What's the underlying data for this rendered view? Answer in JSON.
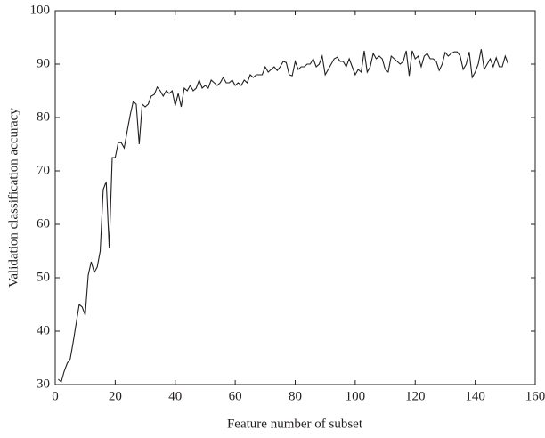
{
  "chart_data": {
    "type": "line",
    "xlabel": "Feature number of subset",
    "ylabel": "Validation classification accuracy",
    "xlim": [
      0,
      160
    ],
    "ylim": [
      30,
      100
    ],
    "xticks": [
      0,
      20,
      40,
      60,
      80,
      100,
      120,
      140,
      160
    ],
    "yticks": [
      30,
      40,
      50,
      60,
      70,
      80,
      90,
      100
    ],
    "color": "#231f20",
    "x": [
      1,
      2,
      3,
      4,
      5,
      6,
      7,
      8,
      9,
      10,
      11,
      12,
      13,
      14,
      15,
      16,
      17,
      18,
      19,
      20,
      21,
      22,
      23,
      24,
      25,
      26,
      27,
      28,
      29,
      30,
      31,
      32,
      33,
      34,
      35,
      36,
      37,
      38,
      39,
      40,
      41,
      42,
      43,
      44,
      45,
      46,
      47,
      48,
      49,
      50,
      51,
      52,
      53,
      54,
      55,
      56,
      57,
      58,
      59,
      60,
      61,
      62,
      63,
      64,
      65,
      66,
      67,
      68,
      69,
      70,
      71,
      72,
      73,
      74,
      75,
      76,
      77,
      78,
      79,
      80,
      81,
      82,
      83,
      84,
      85,
      86,
      87,
      88,
      89,
      90,
      91,
      92,
      93,
      94,
      95,
      96,
      97,
      98,
      99,
      100,
      101,
      102,
      103,
      104,
      105,
      106,
      107,
      108,
      109,
      110,
      111,
      112,
      113,
      114,
      115,
      116,
      117,
      118,
      119,
      120,
      121,
      122,
      123,
      124,
      125,
      126,
      127,
      128,
      129,
      130,
      131,
      132,
      133,
      134,
      135,
      136,
      137,
      138,
      139,
      140,
      141,
      142,
      143,
      144,
      145,
      146,
      147,
      148,
      149,
      150,
      151
    ],
    "values": [
      31,
      30.5,
      32.5,
      34,
      34.8,
      38,
      41.5,
      45,
      44.5,
      43,
      50.5,
      53,
      51,
      52,
      55,
      66.5,
      68,
      55.5,
      72.5,
      72.5,
      75.3,
      75.3,
      74.3,
      77.5,
      80.5,
      83,
      82.5,
      75,
      82.5,
      82,
      82.5,
      84,
      84.3,
      85.7,
      85,
      84,
      85,
      84.5,
      85,
      82.2,
      84.5,
      82,
      85.5,
      85,
      86,
      85,
      85.5,
      87,
      85.5,
      86,
      85.5,
      87,
      86.5,
      86,
      86.5,
      87.5,
      86.5,
      86.5,
      87,
      86,
      86.5,
      86,
      87,
      86.5,
      88,
      87.5,
      88,
      88,
      88,
      89.5,
      88.5,
      89,
      89.5,
      88.8,
      89.5,
      90.5,
      90.3,
      88,
      87.8,
      90.5,
      89,
      89.5,
      89.5,
      90,
      90,
      91,
      89.5,
      90,
      91.5,
      88,
      89,
      90,
      91,
      91.3,
      90.5,
      90.5,
      89.5,
      91,
      89.5,
      88,
      89,
      88.5,
      92.5,
      88.5,
      89.5,
      92,
      91,
      91.5,
      91,
      89,
      88.5,
      91.5,
      91,
      90.5,
      90,
      90.5,
      92.5,
      87.8,
      92.5,
      91,
      91.5,
      89.5,
      91.5,
      92,
      91,
      91,
      90.5,
      88.8,
      90,
      92.2,
      91.5,
      92,
      92.3,
      92.3,
      91.5,
      89,
      90,
      92.3,
      87.5,
      88.5,
      90,
      92.8,
      89,
      90,
      91,
      89.5,
      91.2,
      89.5,
      89.5,
      91.5,
      90
    ]
  }
}
